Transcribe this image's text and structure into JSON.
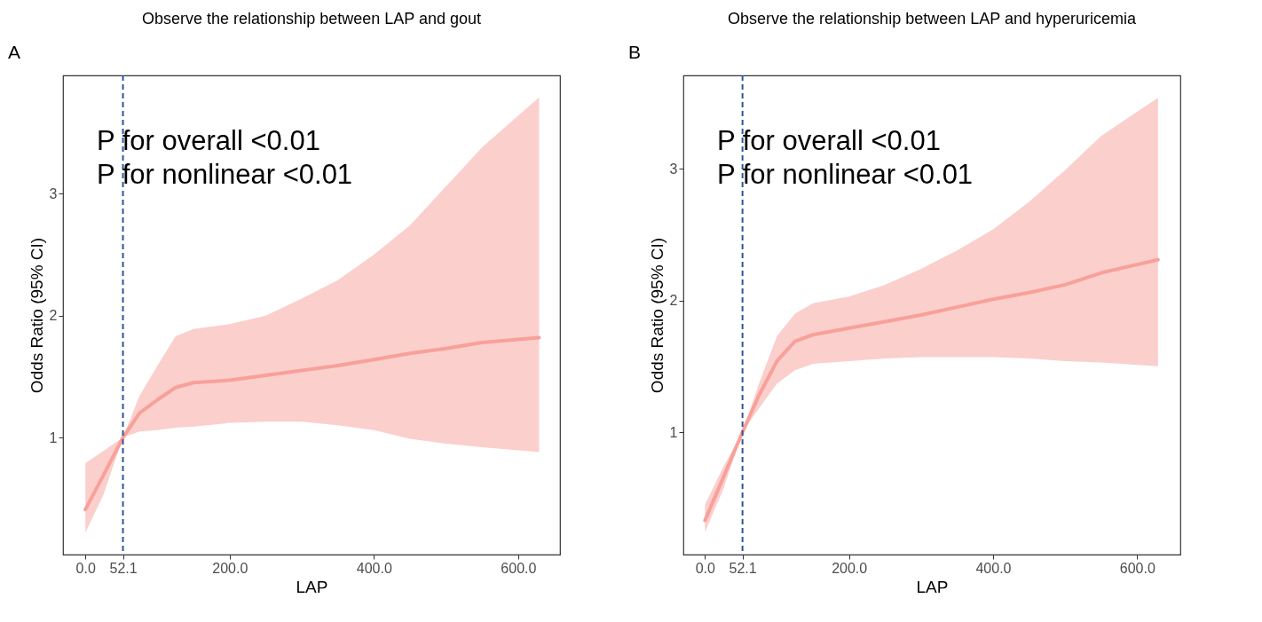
{
  "chart_data": [
    {
      "type": "line",
      "title": "Observe the relationship between LAP and gout",
      "xlabel": "LAP",
      "ylabel": "Odds Ratio (95% CI)",
      "x": [
        0,
        25,
        52.1,
        75,
        100,
        125,
        150,
        200,
        250,
        300,
        350,
        400,
        450,
        500,
        550,
        629
      ],
      "series": [
        {
          "color": "#f8a09a",
          "values": [
            0.41,
            0.69,
            1,
            1.2,
            1.31,
            1.41,
            1.45,
            1.47,
            1.51,
            1.55,
            1.59,
            1.64,
            1.69,
            1.73,
            1.78,
            1.82
          ],
          "lower": [
            0.22,
            0.53,
            1,
            1.05,
            1.06,
            1.08,
            1.09,
            1.12,
            1.13,
            1.13,
            1.1,
            1.06,
            0.99,
            0.95,
            0.92,
            0.88
          ],
          "upper": [
            0.79,
            0.89,
            1,
            1.34,
            1.59,
            1.83,
            1.89,
            1.93,
            2.0,
            2.14,
            2.29,
            2.5,
            2.74,
            3.06,
            3.38,
            3.79
          ]
        }
      ],
      "xlim": [
        -31,
        658
      ],
      "ylim": [
        0.04,
        3.97
      ],
      "xticks": [
        {
          "value": 0,
          "label": "0.0"
        },
        52.1,
        {
          "value": 200,
          "label": "200.0"
        },
        {
          "value": 400,
          "label": "400.0"
        },
        {
          "value": 600,
          "label": "600.0"
        }
      ],
      "yticks": [
        1,
        2,
        3
      ],
      "ref_lines": [
        {
          "axis": "x",
          "value": 52.1,
          "color": "#2f5597",
          "line_style": "dashed"
        }
      ],
      "annotations": [
        "A",
        "P for overall <0.01",
        "P for nonlinear <0.01"
      ]
    },
    {
      "type": "line",
      "title": "Observe the relationship between LAP and hyperuricemia",
      "xlabel": "LAP",
      "ylabel": "Odds Ratio (95% CI)",
      "x": [
        0,
        25,
        52.1,
        75,
        100,
        125,
        150,
        200,
        250,
        300,
        350,
        400,
        450,
        500,
        550,
        629
      ],
      "series": [
        {
          "color": "#f8a09a",
          "values": [
            0.33,
            0.65,
            1,
            1.28,
            1.54,
            1.69,
            1.74,
            1.79,
            1.84,
            1.89,
            1.95,
            2.01,
            2.06,
            2.12,
            2.21,
            2.31
          ],
          "lower": [
            0.24,
            0.56,
            1,
            1.18,
            1.37,
            1.47,
            1.52,
            1.54,
            1.56,
            1.57,
            1.57,
            1.57,
            1.56,
            1.54,
            1.53,
            1.5
          ],
          "upper": [
            0.45,
            0.73,
            1,
            1.37,
            1.73,
            1.9,
            1.98,
            2.03,
            2.12,
            2.24,
            2.38,
            2.54,
            2.75,
            2.99,
            3.25,
            3.54
          ]
        }
      ],
      "xlim": [
        -30,
        660
      ],
      "ylim": [
        0.07,
        3.71
      ],
      "xticks": [
        {
          "value": 0,
          "label": "0.0"
        },
        52.1,
        {
          "value": 200,
          "label": "200.0"
        },
        {
          "value": 400,
          "label": "400.0"
        },
        {
          "value": 600,
          "label": "600.0"
        }
      ],
      "yticks": [
        1,
        2,
        3
      ],
      "ref_lines": [
        {
          "axis": "x",
          "value": 52.1,
          "color": "#2f5597",
          "line_style": "dashed"
        }
      ],
      "annotations": [
        "B",
        "P for overall <0.01",
        "P for nonlinear <0.01"
      ]
    }
  ]
}
